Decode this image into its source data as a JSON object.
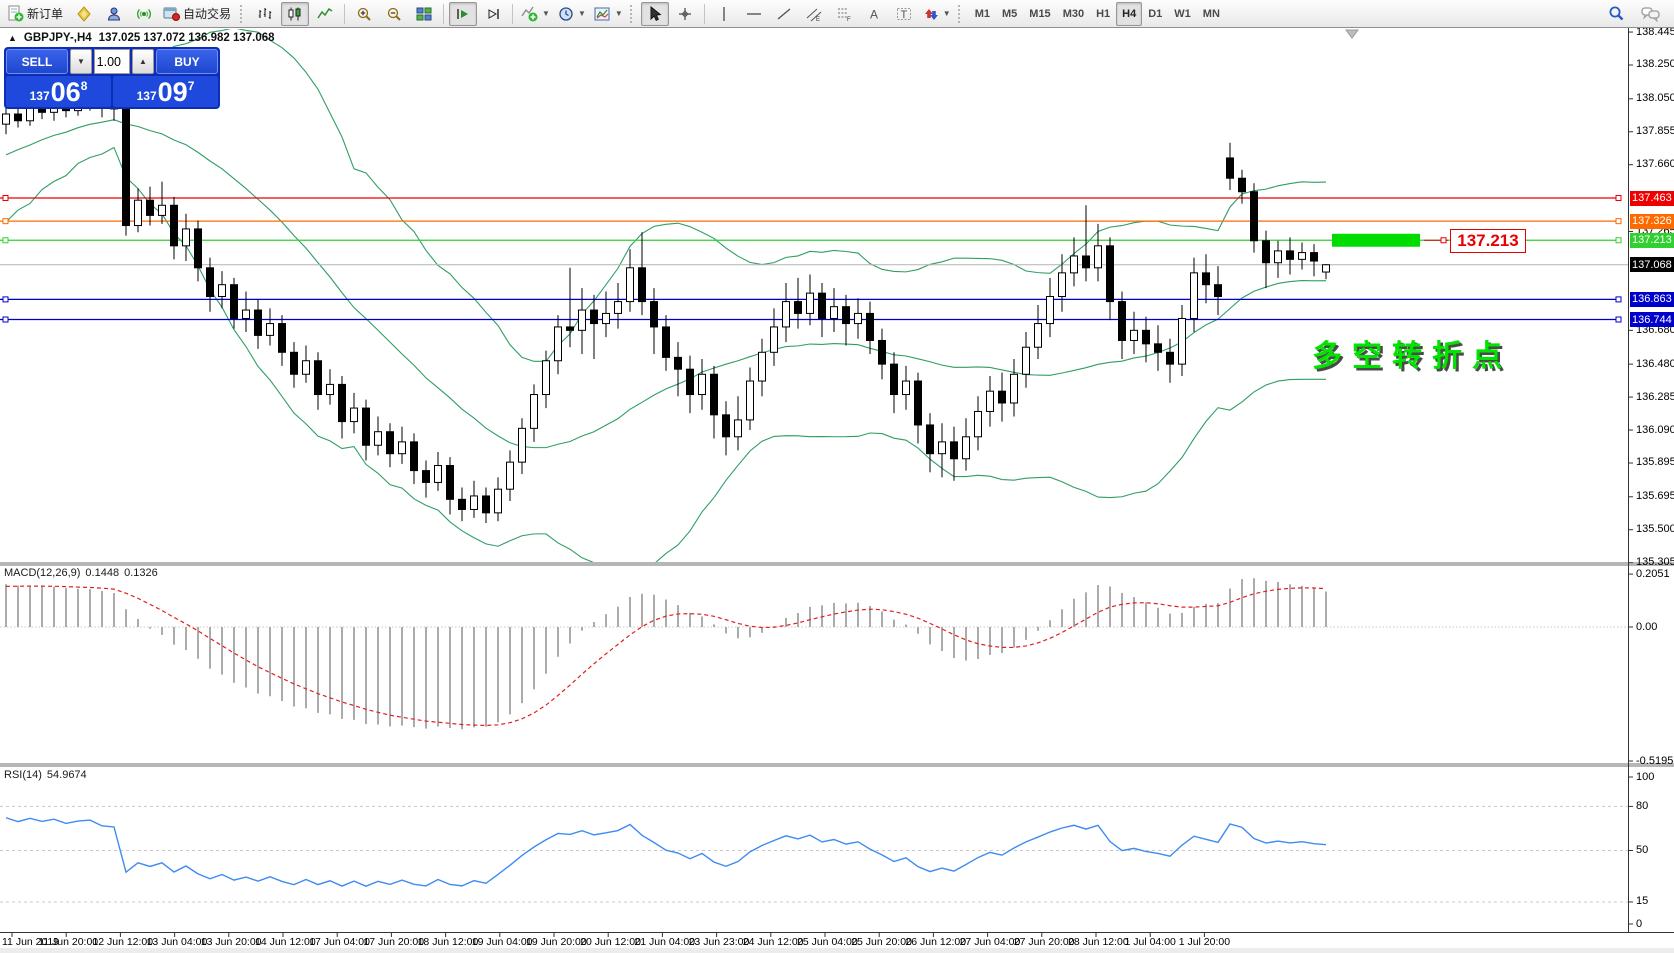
{
  "toolbar": {
    "new_order": "新订单",
    "autotrading": "自动交易",
    "timeframes": [
      "M1",
      "M5",
      "M15",
      "M30",
      "H1",
      "H4",
      "D1",
      "W1",
      "MN"
    ],
    "active_timeframe": "H4"
  },
  "header": {
    "collapse_marker": "▲",
    "symbol": "GBPJPY-,H4",
    "ohlc_values": "137.025 137.072 136.982 137.068"
  },
  "trade_panel": {
    "sell_label": "SELL",
    "buy_label": "BUY",
    "volume": "1.00",
    "sell": {
      "prefix": "137",
      "big": "06",
      "sup": "8"
    },
    "buy": {
      "prefix": "137",
      "big": "09",
      "sup": "7"
    }
  },
  "price_axis": {
    "ticks": [
      "138.445",
      "138.250",
      "138.050",
      "137.855",
      "137.660",
      "137.265",
      "136.680",
      "136.480",
      "136.285",
      "136.090",
      "135.895",
      "135.695",
      "135.500",
      "135.305"
    ]
  },
  "hlines": [
    {
      "price": 137.463,
      "color": "#ee0000",
      "badge": "137.463"
    },
    {
      "price": 137.326,
      "color": "#ff6a00",
      "badge": "137.326"
    },
    {
      "price": 137.213,
      "color": "#2fd02f",
      "badge": "137.213"
    },
    {
      "price": 136.863,
      "color": "#0000cc",
      "badge": "136.863"
    },
    {
      "price": 136.744,
      "color": "#0000cc",
      "badge": "136.744"
    }
  ],
  "bid_line": {
    "price": 137.068,
    "color": "#b4b4b4",
    "badge": "137.068",
    "badge_bg": "#000000"
  },
  "highlight_rect": {
    "price": 137.213,
    "color": "#00dc00"
  },
  "price_label": {
    "text": "137.213",
    "color": "#e80000"
  },
  "annotation": {
    "text": "多空转折点",
    "color": "#00e400"
  },
  "macd_panel": {
    "title": "MACD(12,26,9)",
    "value1": "0.1448",
    "value2": "0.1326",
    "ticks": [
      "0.2051",
      "0.00",
      "-0.5195"
    ]
  },
  "rsi_panel": {
    "title": "RSI(14)",
    "value": "54.9674",
    "ticks": [
      "100",
      "80",
      "50",
      "15",
      "0"
    ],
    "levels": [
      80,
      50,
      15
    ]
  },
  "time_axis": {
    "labels": [
      "11 Jun 2019",
      "11 Jun 20:00",
      "12 Jun 12:00",
      "13 Jun 04:00",
      "13 Jun 20:00",
      "14 Jun 12:00",
      "17 Jun 04:00",
      "17 Jun 20:00",
      "18 Jun 12:00",
      "19 Jun 04:00",
      "19 Jun 20:00",
      "20 Jun 12:00",
      "21 Jun 04:00",
      "23 Jun 23:00",
      "24 Jun 12:00",
      "25 Jun 04:00",
      "25 Jun 20:00",
      "26 Jun 12:00",
      "27 Jun 04:00",
      "27 Jun 20:00",
      "28 Jun 12:00",
      "1 Jul 04:00",
      "1 Jul 20:00"
    ]
  },
  "chart_data": {
    "type": "candlestick",
    "symbol": "GBPJPY-",
    "timeframe": "H4",
    "indicators": [
      "Bollinger Bands",
      "MACD(12,26,9)",
      "RSI(14)"
    ],
    "candles": [
      [
        137.9,
        138.0,
        137.84,
        137.96
      ],
      [
        137.96,
        138.03,
        137.88,
        137.92
      ],
      [
        137.92,
        138.05,
        137.89,
        138.0
      ],
      [
        138.0,
        138.15,
        137.93,
        137.97
      ],
      [
        137.97,
        138.08,
        137.92,
        138.02
      ],
      [
        138.02,
        138.16,
        137.94,
        137.98
      ],
      [
        137.98,
        138.17,
        137.95,
        138.03
      ],
      [
        138.03,
        138.18,
        137.98,
        138.05
      ],
      [
        138.05,
        138.12,
        137.94,
        138.0
      ],
      [
        138.0,
        138.07,
        137.92,
        137.99
      ],
      [
        137.99,
        138.02,
        137.24,
        137.3
      ],
      [
        137.3,
        137.52,
        137.26,
        137.45
      ],
      [
        137.45,
        137.53,
        137.3,
        137.36
      ],
      [
        137.36,
        137.56,
        137.31,
        137.42
      ],
      [
        137.42,
        137.47,
        137.1,
        137.18
      ],
      [
        137.18,
        137.37,
        137.09,
        137.28
      ],
      [
        137.28,
        137.33,
        136.97,
        137.05
      ],
      [
        137.05,
        137.11,
        136.79,
        136.88
      ],
      [
        136.88,
        137.03,
        136.81,
        136.95
      ],
      [
        136.95,
        136.99,
        136.69,
        136.75
      ],
      [
        136.75,
        136.91,
        136.67,
        136.8
      ],
      [
        136.8,
        136.86,
        136.57,
        136.65
      ],
      [
        136.65,
        136.81,
        136.59,
        136.72
      ],
      [
        136.72,
        136.77,
        136.47,
        136.55
      ],
      [
        136.55,
        136.61,
        136.34,
        136.42
      ],
      [
        136.42,
        136.59,
        136.37,
        136.5
      ],
      [
        136.5,
        136.55,
        136.21,
        136.3
      ],
      [
        136.3,
        136.45,
        136.24,
        136.36
      ],
      [
        136.36,
        136.41,
        136.04,
        136.14
      ],
      [
        136.14,
        136.31,
        136.07,
        136.22
      ],
      [
        136.22,
        136.27,
        135.91,
        136.0
      ],
      [
        136.0,
        136.17,
        135.94,
        136.08
      ],
      [
        136.08,
        136.13,
        135.87,
        135.95
      ],
      [
        135.95,
        136.11,
        135.89,
        136.02
      ],
      [
        136.02,
        136.07,
        135.77,
        135.85
      ],
      [
        135.85,
        135.91,
        135.69,
        135.78
      ],
      [
        135.78,
        135.96,
        135.73,
        135.88
      ],
      [
        135.88,
        135.93,
        135.59,
        135.68
      ],
      [
        135.68,
        135.75,
        135.55,
        135.62
      ],
      [
        135.62,
        135.79,
        135.57,
        135.7
      ],
      [
        135.7,
        135.75,
        135.54,
        135.6
      ],
      [
        135.6,
        135.81,
        135.55,
        135.74
      ],
      [
        135.74,
        135.97,
        135.67,
        135.9
      ],
      [
        135.9,
        136.16,
        135.83,
        136.1
      ],
      [
        136.1,
        136.36,
        136.02,
        136.3
      ],
      [
        136.3,
        136.56,
        136.22,
        136.5
      ],
      [
        136.5,
        136.77,
        136.42,
        136.7
      ],
      [
        136.7,
        137.05,
        136.58,
        136.68
      ],
      [
        136.68,
        136.93,
        136.54,
        136.8
      ],
      [
        136.8,
        136.89,
        136.51,
        136.72
      ],
      [
        136.72,
        136.91,
        136.64,
        136.78
      ],
      [
        136.78,
        136.96,
        136.69,
        136.85
      ],
      [
        136.85,
        137.16,
        136.79,
        137.05
      ],
      [
        137.05,
        137.26,
        136.77,
        136.85
      ],
      [
        136.85,
        136.93,
        136.54,
        136.7
      ],
      [
        136.7,
        136.77,
        136.44,
        136.52
      ],
      [
        136.52,
        136.61,
        136.29,
        136.45
      ],
      [
        136.45,
        136.53,
        136.19,
        136.3
      ],
      [
        136.3,
        136.51,
        136.21,
        136.42
      ],
      [
        136.42,
        136.47,
        136.04,
        136.18
      ],
      [
        136.18,
        136.26,
        135.94,
        136.05
      ],
      [
        136.05,
        136.29,
        135.97,
        136.15
      ],
      [
        136.15,
        136.46,
        136.09,
        136.38
      ],
      [
        136.38,
        136.63,
        136.29,
        136.55
      ],
      [
        136.55,
        136.81,
        136.47,
        136.7
      ],
      [
        136.7,
        136.96,
        136.61,
        136.85
      ],
      [
        136.85,
        136.99,
        136.69,
        136.78
      ],
      [
        136.78,
        137.01,
        136.71,
        136.9
      ],
      [
        136.9,
        136.96,
        136.64,
        136.75
      ],
      [
        136.75,
        136.93,
        136.67,
        136.82
      ],
      [
        136.82,
        136.89,
        136.59,
        136.72
      ],
      [
        136.72,
        136.87,
        136.63,
        136.78
      ],
      [
        136.78,
        136.85,
        136.54,
        136.62
      ],
      [
        136.62,
        136.69,
        136.39,
        136.48
      ],
      [
        136.48,
        136.55,
        136.19,
        136.3
      ],
      [
        136.3,
        136.47,
        136.21,
        136.38
      ],
      [
        136.38,
        136.43,
        136.01,
        136.12
      ],
      [
        136.12,
        136.19,
        135.84,
        135.95
      ],
      [
        135.95,
        136.13,
        135.81,
        136.02
      ],
      [
        136.02,
        136.11,
        135.79,
        135.92
      ],
      [
        135.92,
        136.16,
        135.85,
        136.05
      ],
      [
        136.05,
        136.29,
        135.97,
        136.2
      ],
      [
        136.2,
        136.41,
        136.11,
        136.32
      ],
      [
        136.32,
        136.43,
        136.14,
        136.25
      ],
      [
        136.25,
        136.51,
        136.17,
        136.42
      ],
      [
        136.42,
        136.67,
        136.34,
        136.58
      ],
      [
        136.58,
        136.83,
        136.51,
        136.72
      ],
      [
        136.72,
        136.99,
        136.64,
        136.88
      ],
      [
        136.88,
        137.13,
        136.79,
        137.02
      ],
      [
        137.02,
        137.23,
        136.94,
        137.12
      ],
      [
        137.12,
        137.42,
        136.97,
        137.05
      ],
      [
        137.05,
        137.31,
        136.97,
        137.18
      ],
      [
        137.18,
        137.23,
        136.74,
        136.85
      ],
      [
        136.85,
        136.91,
        136.51,
        136.62
      ],
      [
        136.62,
        136.79,
        136.54,
        136.68
      ],
      [
        136.68,
        136.76,
        136.49,
        136.6
      ],
      [
        136.6,
        136.71,
        136.44,
        136.55
      ],
      [
        136.55,
        136.63,
        136.37,
        136.48
      ],
      [
        136.48,
        136.83,
        136.41,
        136.75
      ],
      [
        136.75,
        137.11,
        136.67,
        137.02
      ],
      [
        137.02,
        137.13,
        136.84,
        136.95
      ],
      [
        136.95,
        137.06,
        136.77,
        136.88
      ],
      [
        137.7,
        137.79,
        137.51,
        137.58
      ],
      [
        137.58,
        137.63,
        137.43,
        137.5
      ],
      [
        137.5,
        137.55,
        137.14,
        137.21
      ],
      [
        137.21,
        137.27,
        136.93,
        137.08
      ],
      [
        137.08,
        137.21,
        136.99,
        137.15
      ],
      [
        137.15,
        137.23,
        137.01,
        137.1
      ],
      [
        137.1,
        137.2,
        137.04,
        137.14
      ],
      [
        137.14,
        137.19,
        137.0,
        137.09
      ],
      [
        137.025,
        137.072,
        136.982,
        137.068
      ]
    ]
  }
}
